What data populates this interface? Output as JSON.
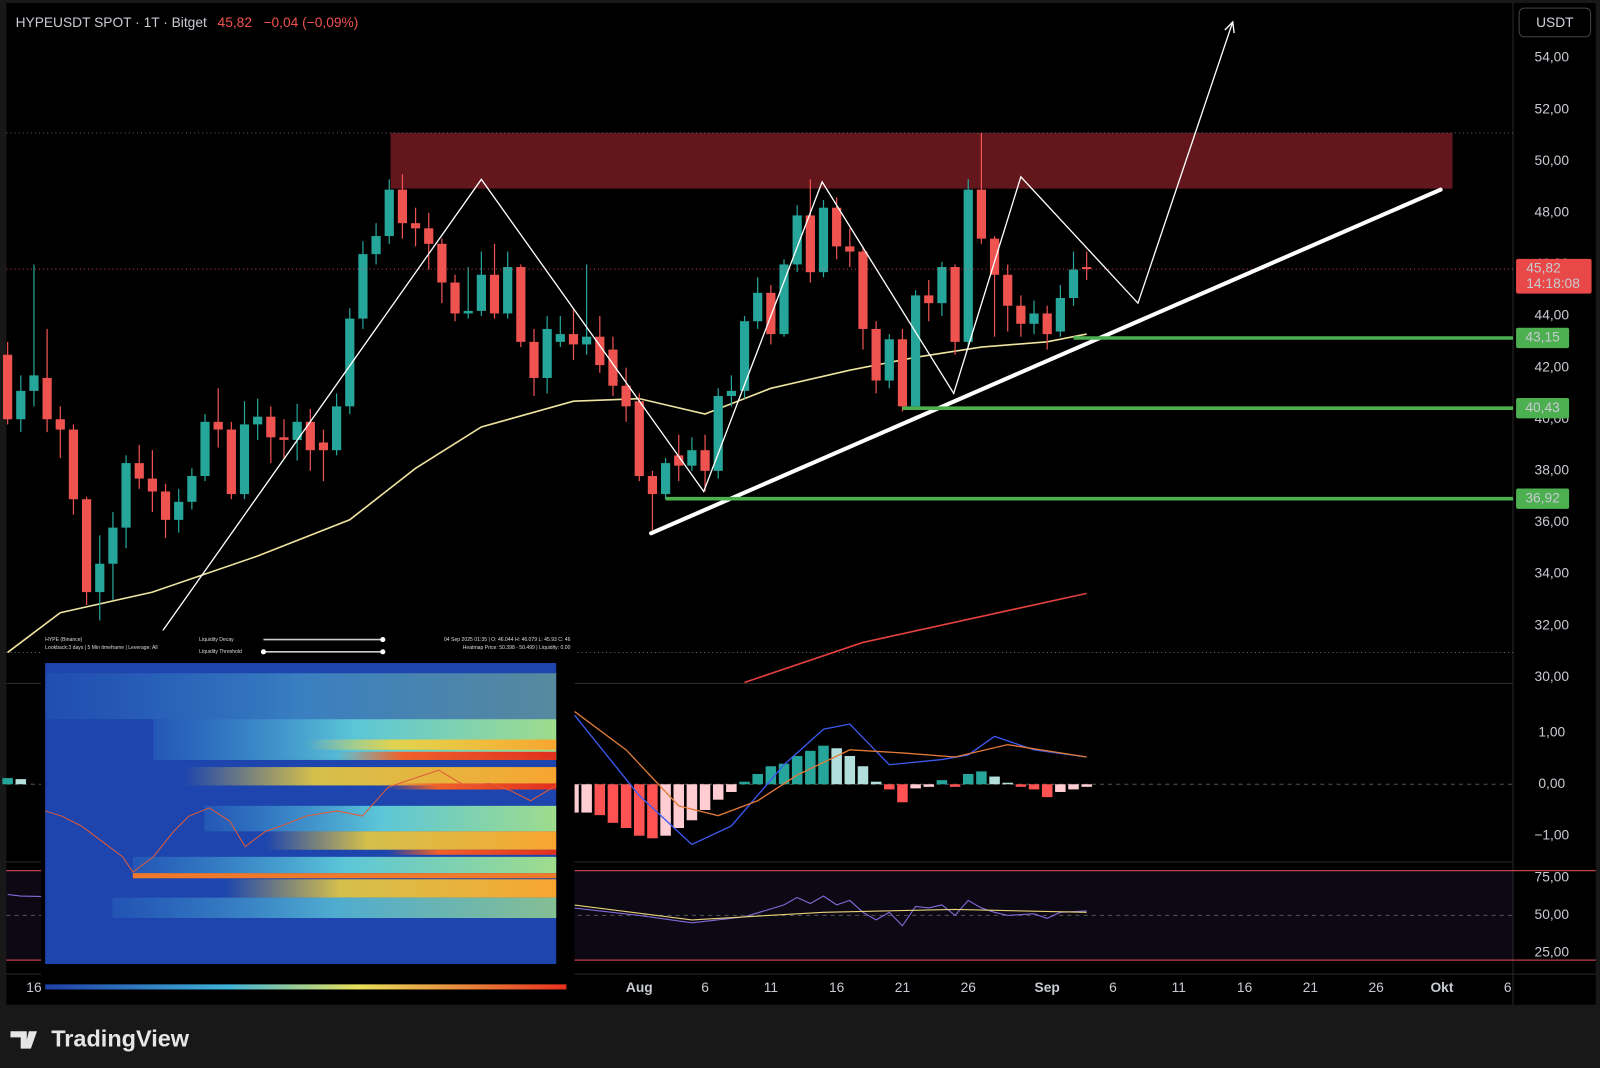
{
  "chart_data": [
    {
      "type": "candlestick",
      "title": "HYPEUSDT SPOT · 1T · Bitget",
      "last_price": {
        "value": 45.82,
        "label": "45,82"
      },
      "change": "−0,04 (−0,09%)",
      "countdown": "14:18:08",
      "currency": "USDT",
      "up_color": "#26a69a",
      "down_color": "#ef5350",
      "x": [
        -2,
        -1,
        0,
        1,
        2,
        3,
        4,
        5,
        6,
        7,
        8,
        9,
        10,
        11,
        12,
        13,
        14,
        15,
        16,
        17,
        18,
        19,
        20,
        21,
        22,
        23,
        24,
        25,
        26,
        27,
        28,
        29,
        30,
        31,
        32,
        33,
        34,
        35,
        36,
        37,
        38,
        39,
        40,
        41,
        42,
        43,
        44,
        45,
        46,
        47,
        48,
        49,
        50,
        51,
        52,
        53,
        54,
        55,
        56,
        57,
        58,
        59,
        60,
        61,
        62,
        63,
        64,
        65,
        66,
        67,
        68,
        69,
        70,
        71,
        72,
        73,
        74,
        75,
        76,
        77,
        78,
        79,
        80
      ],
      "candles": [
        {
          "o": 42.5,
          "h": 43,
          "l": 39.8,
          "c": 40
        },
        {
          "o": 40,
          "h": 41.7,
          "l": 39.5,
          "c": 41.1
        },
        {
          "o": 41.1,
          "h": 46,
          "l": 40.5,
          "c": 41.7
        },
        {
          "o": 41.6,
          "h": 43.5,
          "l": 39.5,
          "c": 40
        },
        {
          "o": 40,
          "h": 40.5,
          "l": 38.5,
          "c": 39.6
        },
        {
          "o": 39.6,
          "h": 39.8,
          "l": 36.3,
          "c": 36.9
        },
        {
          "o": 36.9,
          "h": 37,
          "l": 32.8,
          "c": 33.3
        },
        {
          "o": 33.3,
          "h": 35.5,
          "l": 32.2,
          "c": 34.4
        },
        {
          "o": 34.4,
          "h": 36.4,
          "l": 33,
          "c": 35.8
        },
        {
          "o": 35.8,
          "h": 38.6,
          "l": 35,
          "c": 38.3
        },
        {
          "o": 38.3,
          "h": 39,
          "l": 37.3,
          "c": 37.7
        },
        {
          "o": 37.7,
          "h": 38.8,
          "l": 36.4,
          "c": 37.2
        },
        {
          "o": 37.2,
          "h": 37.5,
          "l": 35.4,
          "c": 36.1
        },
        {
          "o": 36.1,
          "h": 37.3,
          "l": 35.6,
          "c": 36.8
        },
        {
          "o": 36.8,
          "h": 38.1,
          "l": 36.5,
          "c": 37.8
        },
        {
          "o": 37.8,
          "h": 40.2,
          "l": 37.6,
          "c": 39.9
        },
        {
          "o": 39.9,
          "h": 41.2,
          "l": 38.9,
          "c": 39.6
        },
        {
          "o": 39.6,
          "h": 39.9,
          "l": 36.9,
          "c": 37.1
        },
        {
          "o": 37.1,
          "h": 40.7,
          "l": 36.9,
          "c": 39.8
        },
        {
          "o": 39.8,
          "h": 40.8,
          "l": 39.2,
          "c": 40.1
        },
        {
          "o": 40.1,
          "h": 40.5,
          "l": 38.3,
          "c": 39.3
        },
        {
          "o": 39.3,
          "h": 40,
          "l": 38.5,
          "c": 39.2
        },
        {
          "o": 39.2,
          "h": 40.6,
          "l": 38.4,
          "c": 39.9
        },
        {
          "o": 39.9,
          "h": 40.4,
          "l": 38,
          "c": 38.8
        },
        {
          "o": 39.1,
          "h": 39.6,
          "l": 37.6,
          "c": 38.8
        },
        {
          "o": 38.8,
          "h": 41,
          "l": 38.6,
          "c": 40.5
        },
        {
          "o": 40.5,
          "h": 44.3,
          "l": 40.2,
          "c": 43.9
        },
        {
          "o": 43.9,
          "h": 46.9,
          "l": 43.5,
          "c": 46.4
        },
        {
          "o": 46.4,
          "h": 47.6,
          "l": 46,
          "c": 47.1
        },
        {
          "o": 47.1,
          "h": 49.3,
          "l": 46.8,
          "c": 48.9
        },
        {
          "o": 48.9,
          "h": 49.5,
          "l": 47,
          "c": 47.6
        },
        {
          "o": 47.6,
          "h": 48.2,
          "l": 46.7,
          "c": 47.4
        },
        {
          "o": 47.4,
          "h": 48,
          "l": 45.8,
          "c": 46.8
        },
        {
          "o": 46.8,
          "h": 47,
          "l": 44.5,
          "c": 45.3
        },
        {
          "o": 45.3,
          "h": 45.6,
          "l": 43.8,
          "c": 44.1
        },
        {
          "o": 44.1,
          "h": 45.9,
          "l": 43.9,
          "c": 44.2
        },
        {
          "o": 44.2,
          "h": 46.5,
          "l": 44,
          "c": 45.6
        },
        {
          "o": 45.6,
          "h": 46.8,
          "l": 43.9,
          "c": 44.1
        },
        {
          "o": 44.1,
          "h": 46.5,
          "l": 43.9,
          "c": 45.9
        },
        {
          "o": 45.9,
          "h": 46,
          "l": 42.8,
          "c": 43
        },
        {
          "o": 43,
          "h": 43.5,
          "l": 40.9,
          "c": 41.6
        },
        {
          "o": 41.6,
          "h": 44,
          "l": 41,
          "c": 43.5
        },
        {
          "o": 43,
          "h": 44,
          "l": 42.8,
          "c": 43.3
        },
        {
          "o": 43.3,
          "h": 44.3,
          "l": 42.3,
          "c": 42.9
        },
        {
          "o": 42.9,
          "h": 46,
          "l": 42.5,
          "c": 43.2
        },
        {
          "o": 43.2,
          "h": 44,
          "l": 41.8,
          "c": 42.1
        },
        {
          "o": 42.7,
          "h": 43.2,
          "l": 40.9,
          "c": 41.3
        },
        {
          "o": 41.3,
          "h": 42,
          "l": 39.9,
          "c": 40.5
        },
        {
          "o": 40.7,
          "h": 41,
          "l": 37.6,
          "c": 37.8
        },
        {
          "o": 37.8,
          "h": 38,
          "l": 35.7,
          "c": 37.1
        },
        {
          "o": 37.1,
          "h": 38.5,
          "l": 36.9,
          "c": 38.3
        },
        {
          "o": 38.6,
          "h": 39.4,
          "l": 37.6,
          "c": 38.2
        },
        {
          "o": 38.2,
          "h": 39.3,
          "l": 38,
          "c": 38.8
        },
        {
          "o": 38.8,
          "h": 39.4,
          "l": 37.2,
          "c": 38
        },
        {
          "o": 38,
          "h": 41.2,
          "l": 37.7,
          "c": 40.9
        },
        {
          "o": 40.9,
          "h": 41.7,
          "l": 40.5,
          "c": 41.1
        },
        {
          "o": 41.1,
          "h": 44,
          "l": 40.8,
          "c": 43.8
        },
        {
          "o": 43.8,
          "h": 45.5,
          "l": 43.5,
          "c": 44.9
        },
        {
          "o": 44.9,
          "h": 45.2,
          "l": 42.9,
          "c": 43.3
        },
        {
          "o": 43.3,
          "h": 46.2,
          "l": 43.2,
          "c": 46
        },
        {
          "o": 46,
          "h": 48.3,
          "l": 45.7,
          "c": 47.9
        },
        {
          "o": 47.9,
          "h": 49.3,
          "l": 45.3,
          "c": 45.7
        },
        {
          "o": 45.7,
          "h": 48.5,
          "l": 45.5,
          "c": 48.2
        },
        {
          "o": 48.2,
          "h": 48.6,
          "l": 46.2,
          "c": 46.7
        },
        {
          "o": 46.7,
          "h": 47.4,
          "l": 45.9,
          "c": 46.5
        },
        {
          "o": 46.5,
          "h": 46.7,
          "l": 42.7,
          "c": 43.5
        },
        {
          "o": 43.5,
          "h": 43.8,
          "l": 41,
          "c": 41.5
        },
        {
          "o": 41.5,
          "h": 43.3,
          "l": 41.2,
          "c": 43.1
        },
        {
          "o": 43.1,
          "h": 43.5,
          "l": 40.3,
          "c": 40.5
        },
        {
          "o": 40.5,
          "h": 45,
          "l": 40.4,
          "c": 44.8
        },
        {
          "o": 44.8,
          "h": 45.4,
          "l": 43.8,
          "c": 44.5
        },
        {
          "o": 44.5,
          "h": 46.1,
          "l": 44,
          "c": 45.9
        },
        {
          "o": 45.9,
          "h": 46,
          "l": 42.5,
          "c": 43
        },
        {
          "o": 43,
          "h": 49.3,
          "l": 42.8,
          "c": 48.9
        },
        {
          "o": 48.9,
          "h": 51.1,
          "l": 46.8,
          "c": 47
        },
        {
          "o": 47,
          "h": 47.1,
          "l": 43.2,
          "c": 45.6
        },
        {
          "o": 45.6,
          "h": 46,
          "l": 43.4,
          "c": 44.4
        },
        {
          "o": 44.4,
          "h": 44.8,
          "l": 43.2,
          "c": 43.7
        },
        {
          "o": 43.7,
          "h": 44.6,
          "l": 43.3,
          "c": 44.1
        },
        {
          "o": 44.1,
          "h": 44.4,
          "l": 42.7,
          "c": 43.3
        },
        {
          "o": 43.4,
          "h": 45.2,
          "l": 43.2,
          "c": 44.7
        },
        {
          "o": 44.7,
          "h": 46.5,
          "l": 44.4,
          "c": 45.8
        },
        {
          "o": 45.9,
          "h": 46.5,
          "l": 45.4,
          "c": 45.82
        }
      ],
      "xlim": [
        -2.56,
        112.4
      ],
      "xticks": [
        {
          "value": 0,
          "label": "16"
        },
        {
          "value": 46,
          "label": "Aug"
        },
        {
          "value": 51,
          "label": "6"
        },
        {
          "value": 56,
          "label": "11"
        },
        {
          "value": 61,
          "label": "16"
        },
        {
          "value": 66,
          "label": "21"
        },
        {
          "value": 71,
          "label": "26"
        },
        {
          "value": 77,
          "label": "Sep"
        },
        {
          "value": 82,
          "label": "6"
        },
        {
          "value": 87,
          "label": "11"
        },
        {
          "value": 92,
          "label": "16"
        },
        {
          "value": 97,
          "label": "21"
        },
        {
          "value": 102,
          "label": "26"
        },
        {
          "value": 107,
          "label": "Okt"
        },
        {
          "value": 112,
          "label": "6"
        }
      ],
      "ylim": [
        29.76,
        56.25
      ],
      "yticks": [
        {
          "value": 30,
          "label": "30,00"
        },
        {
          "value": 32,
          "label": "32,00"
        },
        {
          "value": 34,
          "label": "34,00"
        },
        {
          "value": 36,
          "label": "36,00"
        },
        {
          "value": 38,
          "label": "38,00"
        },
        {
          "value": 40,
          "label": "40,00"
        },
        {
          "value": 42,
          "label": "42,00"
        },
        {
          "value": 44,
          "label": "44,00"
        },
        {
          "value": 46,
          "label": "46,00"
        },
        {
          "value": 48,
          "label": "48,00"
        },
        {
          "value": 50,
          "label": "50,00"
        },
        {
          "value": 52,
          "label": "52,00"
        },
        {
          "value": 54,
          "label": "54,00"
        }
      ],
      "moving_averages": [
        {
          "color": "#efe3a0",
          "x": [
            -2,
            2,
            9,
            17,
            24,
            29,
            34,
            41,
            46,
            51,
            56,
            62,
            67,
            72,
            77,
            80
          ],
          "values": [
            30.96,
            32.5,
            33.3,
            34.7,
            36.1,
            38.1,
            39.7,
            40.7,
            40.8,
            40.2,
            41.2,
            41.9,
            42.4,
            42.8,
            43,
            43.3
          ]
        },
        {
          "color": "#e0403f",
          "x": [
            54,
            63,
            80
          ],
          "values": [
            29.8,
            31.35,
            33.25
          ]
        }
      ],
      "zone": {
        "color": "#6e1a20",
        "x": [
          27.1,
          107.8
        ],
        "values": [
          48.94,
          51.1
        ]
      },
      "dotted_levels": [
        51.1,
        30.96
      ],
      "trendline": {
        "color": "#ffffff",
        "x": [
          46.9,
          106.9
        ],
        "values": [
          35.58,
          48.9
        ]
      },
      "projection": {
        "color": "#ffffff",
        "x": [
          9.6,
          34,
          50.9,
          59.9,
          69.9,
          75,
          83.9,
          91.1
        ],
        "values": [
          31.67,
          49.3,
          37.2,
          49.2,
          41,
          49.4,
          44.5,
          55.4
        ]
      },
      "levels_color": "#4caf50",
      "levels": [
        {
          "value": 43.15,
          "label": "43,15",
          "x": 79
        },
        {
          "value": 40.43,
          "label": "40,43",
          "x": 66
        },
        {
          "value": 36.92,
          "label": "36,92",
          "x": 48
        }
      ]
    },
    {
      "type": "macd",
      "ylim": [
        -1.51,
        1.96
      ],
      "yticks": [
        {
          "value": 1,
          "label": "1,00"
        },
        {
          "value": 0,
          "label": "0,00"
        },
        {
          "value": -1,
          "label": "−1,00"
        }
      ],
      "baseline": 0,
      "histogram": {
        "x": [
          -2,
          -1,
          41,
          42,
          43,
          44,
          45,
          46,
          47,
          48,
          49,
          50,
          51,
          52,
          53,
          54,
          55,
          56,
          57,
          58,
          59,
          60,
          61,
          62,
          63,
          64,
          65,
          66,
          67,
          68,
          69,
          70,
          71,
          72,
          73,
          74,
          75,
          76,
          77,
          78,
          79,
          80
        ],
        "values": [
          0.12,
          0.1,
          -0.55,
          -0.55,
          -0.6,
          -0.75,
          -0.85,
          -1,
          -1.05,
          -1,
          -0.85,
          -0.7,
          -0.5,
          -0.3,
          -0.15,
          0.05,
          0.2,
          0.35,
          0.4,
          0.55,
          0.65,
          0.75,
          0.7,
          0.55,
          0.35,
          0.05,
          -0.1,
          -0.35,
          -0.08,
          -0.05,
          0.08,
          -0.05,
          0.2,
          0.25,
          0.15,
          0.03,
          -0.05,
          -0.1,
          -0.25,
          -0.15,
          -0.1,
          -0.05
        ]
      },
      "lines": [
        {
          "color": "#3d5af1",
          "x": [
            41,
            46,
            50,
            53,
            57,
            60,
            62,
            65,
            69,
            71,
            73,
            76,
            80
          ],
          "values": [
            1.37,
            -0.22,
            -1.17,
            -0.81,
            0.38,
            1.07,
            1.17,
            0.38,
            0.48,
            0.57,
            0.93,
            0.67,
            0.53
          ]
        },
        {
          "color": "#e07b39",
          "x": [
            41,
            45,
            49,
            52,
            55,
            58,
            62,
            66,
            70,
            74,
            80
          ],
          "values": [
            1.43,
            0.67,
            -0.42,
            -0.61,
            -0.32,
            0.18,
            0.67,
            0.61,
            0.53,
            0.77,
            0.53
          ]
        }
      ]
    },
    {
      "type": "line",
      "ylim": [
        10.6,
        85.8
      ],
      "yticks": [
        {
          "value": 75,
          "label": "75,00"
        },
        {
          "value": 50,
          "label": "50,00"
        },
        {
          "value": 25,
          "label": "25,00"
        }
      ],
      "baseline": 50,
      "band": [
        20,
        80
      ],
      "band_color": "#c2404a",
      "lines": [
        {
          "color": "#7e6bd6",
          "x": [
            -2,
            -1,
            41,
            46,
            50,
            54,
            57,
            58,
            59,
            60,
            61,
            62,
            63,
            64,
            65,
            66,
            67,
            68,
            69,
            70,
            71,
            72,
            73,
            74,
            76,
            77,
            78,
            80
          ],
          "values": [
            64,
            63,
            55,
            50,
            45,
            49,
            57,
            62,
            58,
            63,
            57,
            60,
            52,
            47,
            52,
            43,
            56,
            55,
            57,
            50,
            60,
            55,
            52,
            50,
            51,
            48,
            52,
            53
          ]
        },
        {
          "color": "#e8d27a",
          "x": [
            41,
            50,
            60,
            70,
            80
          ],
          "values": [
            57,
            47,
            52,
            54,
            52
          ]
        }
      ]
    }
  ],
  "inset": {
    "title": "HYPE (Binance)",
    "settings": "Lookback:3 days | 5 Min timeframe | Leverage: All",
    "decay": "Liquidity Decay",
    "threshold": "Liquidity Threshold",
    "ohlc": "04 Sep 2025 01:35 | O: 46.044 H: 46.079 L: 45.93 C: 46",
    "heatmap": "Heatmap Price: 50.398 - 50.499 | Liquidity: 0.00"
  },
  "footer": {
    "brand": "TradingView"
  }
}
